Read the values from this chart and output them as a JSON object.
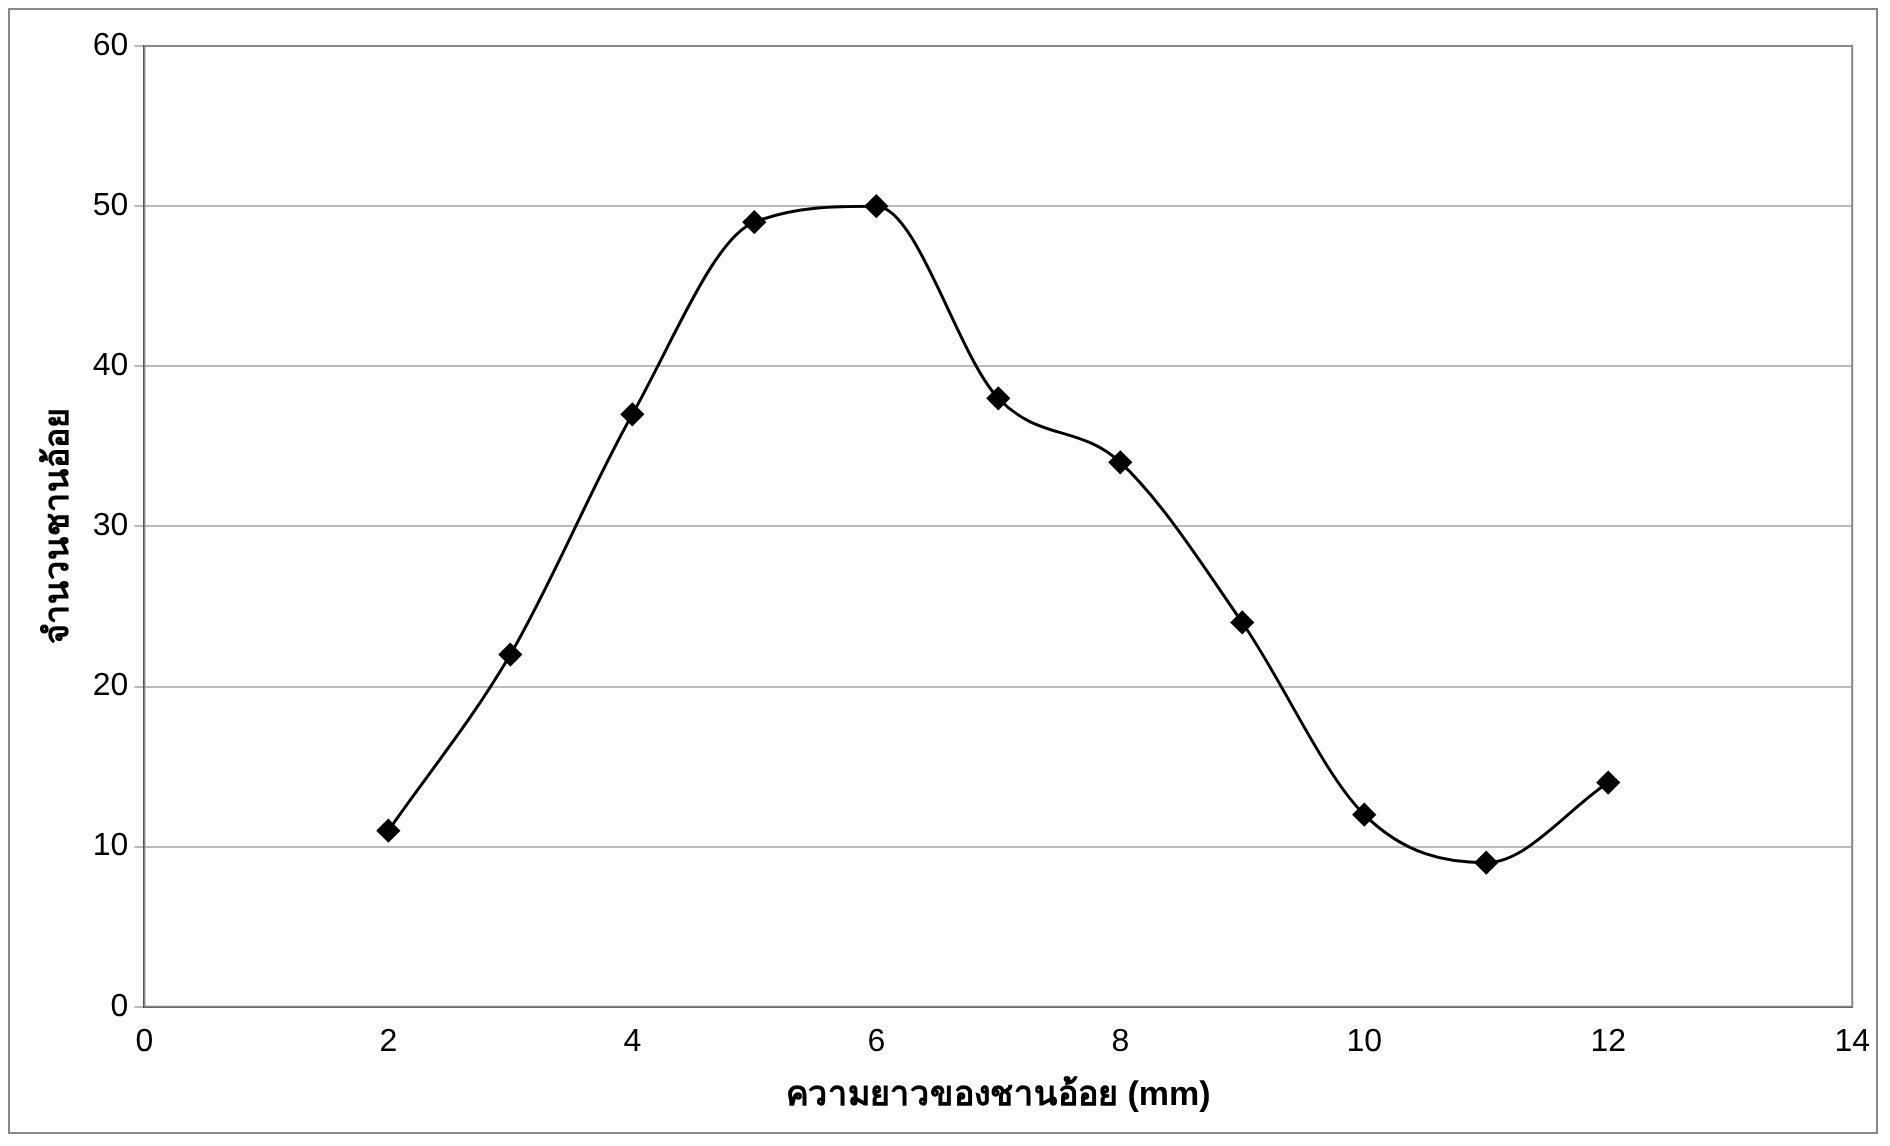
{
  "chart_data": {
    "type": "line",
    "xlabel": "ความยาวของชานอ้อย (mm)",
    "ylabel": "จำนวนชานอ้อย",
    "x": [
      2,
      3,
      4,
      5,
      6,
      7,
      8,
      9,
      10,
      11,
      12
    ],
    "series": [
      {
        "color": "#000000",
        "values": [
          11,
          22,
          37,
          49,
          50,
          38,
          34,
          24,
          12,
          9,
          14
        ]
      }
    ],
    "xlim": [
      0,
      14
    ],
    "xticks": [
      0,
      2,
      4,
      6,
      8,
      10,
      12,
      14
    ],
    "ylim": [
      0,
      60
    ],
    "yticks": [
      0,
      10,
      20,
      30,
      40,
      50,
      60
    ],
    "grid": "y",
    "legend": false,
    "marker": "diamond",
    "line_style": "solid"
  }
}
